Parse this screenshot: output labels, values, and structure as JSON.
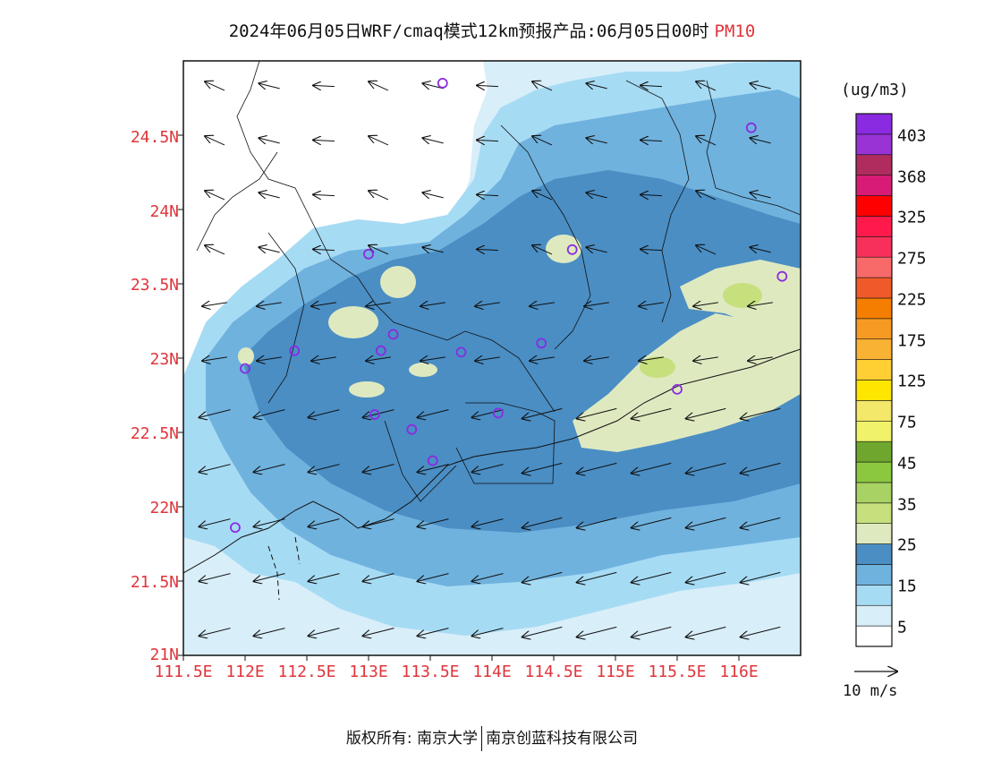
{
  "title": {
    "main": "2024年06月05日WRF/cmaq模式12km预报产品:06月05日00时",
    "species": "PM10",
    "species_color": "#e0343a"
  },
  "map": {
    "lat_ticks": [
      "24.5N",
      "24N",
      "23.5N",
      "23N",
      "22.5N",
      "22N",
      "21.5N",
      "21N"
    ],
    "lon_ticks": [
      "111.5E",
      "112E",
      "112.5E",
      "113E",
      "113.5E",
      "114E",
      "114.5E",
      "115E",
      "115.5E",
      "116E"
    ],
    "tick_color": "#e0343a",
    "extent": {
      "lon_min": 111.5,
      "lon_max": 116.5,
      "lat_min": 21.0,
      "lat_max": 25.0
    },
    "stations": [
      [
        113.6,
        24.85
      ],
      [
        116.1,
        24.55
      ],
      [
        114.65,
        23.73
      ],
      [
        113.0,
        23.7
      ],
      [
        116.35,
        23.55
      ],
      [
        112.4,
        23.05
      ],
      [
        113.1,
        23.05
      ],
      [
        113.2,
        23.16
      ],
      [
        113.75,
        23.04
      ],
      [
        114.4,
        23.1
      ],
      [
        112.0,
        22.93
      ],
      [
        115.5,
        22.79
      ],
      [
        113.05,
        22.62
      ],
      [
        114.05,
        22.63
      ],
      [
        113.35,
        22.52
      ],
      [
        113.52,
        22.31
      ],
      [
        111.92,
        21.86
      ]
    ],
    "station_color": "#8a2be2"
  },
  "legend": {
    "unit": "(ug/m3)",
    "levels": [
      "403",
      "368",
      "325",
      "275",
      "225",
      "175",
      "125",
      "75",
      "45",
      "35",
      "25",
      "15",
      "5"
    ],
    "colors": [
      "#ffffff",
      "#d8eef9",
      "#a6dbf4",
      "#6fb2de",
      "#4a8ec4",
      "#dfe9c0",
      "#c6e07e",
      "#a8d264",
      "#8cc83f",
      "#6fa72e",
      "#f0f36a",
      "#f4e86a",
      "#ffe600",
      "#ffcf33",
      "#f9b233",
      "#f79a24",
      "#f57e00",
      "#f05a28",
      "#f86a6a",
      "#f6305a",
      "#ff1a4b",
      "#ff0000",
      "#d81b74",
      "#b02c5e",
      "#9a33d6",
      "#8a2be2"
    ]
  },
  "wind_reference": {
    "label": "10 m/s"
  },
  "footer": {
    "copyright": "版权所有: 南京大学",
    "company": "南京创蓝科技有限公司"
  }
}
